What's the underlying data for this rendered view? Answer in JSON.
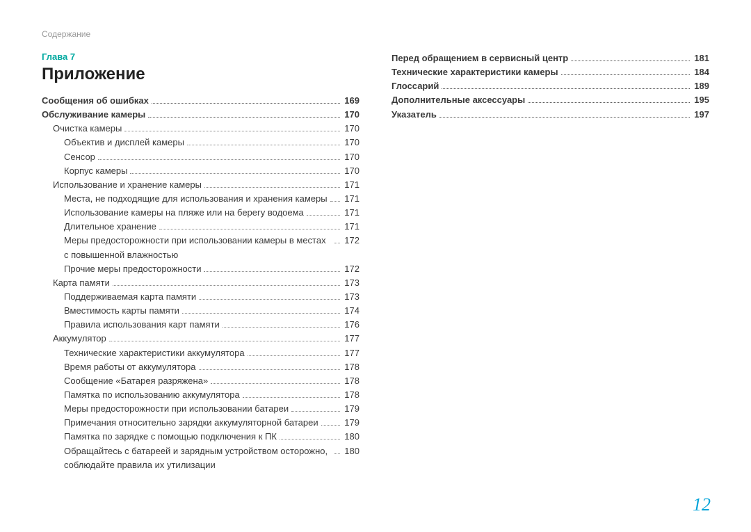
{
  "header": {
    "breadcrumb": "Содержание"
  },
  "chapter_label": "Глава 7",
  "section_title": "Приложение",
  "page_number": "12",
  "colors": {
    "accent_teal": "#00a9a0",
    "page_num_blue": "#00a3d9",
    "text": "#3a3a3a",
    "muted": "#999999",
    "background": "#ffffff"
  },
  "left_entries": [
    {
      "label": "Сообщения об ошибках",
      "page": "169",
      "indent": 0,
      "bold": true
    },
    {
      "label": "Обслуживание камеры",
      "page": "170",
      "indent": 0,
      "bold": true
    },
    {
      "label": "Очистка камеры",
      "page": "170",
      "indent": 1,
      "bold": false
    },
    {
      "label": "Объектив и дисплей камеры",
      "page": "170",
      "indent": 2,
      "bold": false
    },
    {
      "label": "Сенсор",
      "page": "170",
      "indent": 2,
      "bold": false
    },
    {
      "label": "Корпус камеры",
      "page": "170",
      "indent": 2,
      "bold": false
    },
    {
      "label": "Использование и хранение камеры",
      "page": "171",
      "indent": 1,
      "bold": false
    },
    {
      "label": "Места, не подходящие для использования и хранения камеры",
      "page": "171",
      "indent": 2,
      "bold": false
    },
    {
      "label": "Использование камеры на пляже или на берегу водоема",
      "page": "171",
      "indent": 2,
      "bold": false
    },
    {
      "label": "Длительное хранение",
      "page": "171",
      "indent": 2,
      "bold": false
    },
    {
      "label": "Меры предосторожности при использовании камеры в местах с повышенной влажностью",
      "page": "172",
      "indent": 2,
      "bold": false,
      "wrap": true
    },
    {
      "label": "Прочие меры предосторожности",
      "page": "172",
      "indent": 2,
      "bold": false
    },
    {
      "label": "Карта памяти",
      "page": "173",
      "indent": 1,
      "bold": false
    },
    {
      "label": "Поддерживаемая карта памяти",
      "page": "173",
      "indent": 2,
      "bold": false
    },
    {
      "label": "Вместимость карты памяти",
      "page": "174",
      "indent": 2,
      "bold": false
    },
    {
      "label": "Правила использования карт памяти",
      "page": "176",
      "indent": 2,
      "bold": false
    },
    {
      "label": "Аккумулятор",
      "page": "177",
      "indent": 1,
      "bold": false
    },
    {
      "label": "Технические характеристики аккумулятора",
      "page": "177",
      "indent": 2,
      "bold": false
    },
    {
      "label": "Время работы от аккумулятора",
      "page": "178",
      "indent": 2,
      "bold": false
    },
    {
      "label": "Сообщение «Батарея разряжена»",
      "page": "178",
      "indent": 2,
      "bold": false
    },
    {
      "label": "Памятка по использованию аккумулятора",
      "page": "178",
      "indent": 2,
      "bold": false
    },
    {
      "label": "Меры предосторожности при использовании батареи",
      "page": "179",
      "indent": 2,
      "bold": false
    },
    {
      "label": "Примечания относительно зарядки аккумуляторной батареи",
      "page": "179",
      "indent": 2,
      "bold": false
    },
    {
      "label": "Памятка по зарядке с помощью подключения к ПК",
      "page": "180",
      "indent": 2,
      "bold": false
    },
    {
      "label": "Обращайтесь с батареей и зарядным устройством осторожно, соблюдайте правила их утилизации",
      "page": "180",
      "indent": 2,
      "bold": false,
      "wrap": true
    }
  ],
  "right_entries": [
    {
      "label": "Перед обращением в сервисный центр",
      "page": "181",
      "indent": 0,
      "bold": true
    },
    {
      "label": "Технические характеристики камеры",
      "page": "184",
      "indent": 0,
      "bold": true
    },
    {
      "label": "Глоссарий",
      "page": "189",
      "indent": 0,
      "bold": true
    },
    {
      "label": "Дополнительные аксессуары",
      "page": "195",
      "indent": 0,
      "bold": true
    },
    {
      "label": "Указатель",
      "page": "197",
      "indent": 0,
      "bold": true
    }
  ]
}
